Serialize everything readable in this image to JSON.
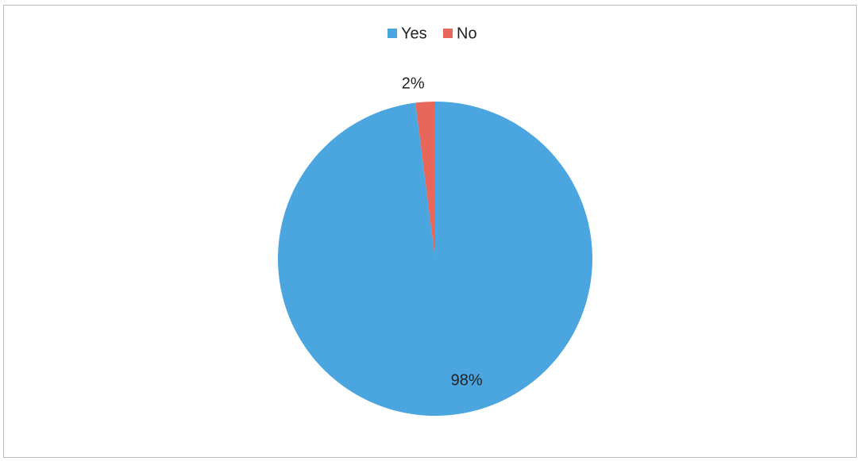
{
  "chart_data": {
    "type": "pie",
    "categories": [
      "Yes",
      "No"
    ],
    "values": [
      98,
      2
    ],
    "value_labels": [
      "98%",
      "2%"
    ],
    "colors": [
      "#4ba6e0",
      "#e8675b"
    ]
  }
}
